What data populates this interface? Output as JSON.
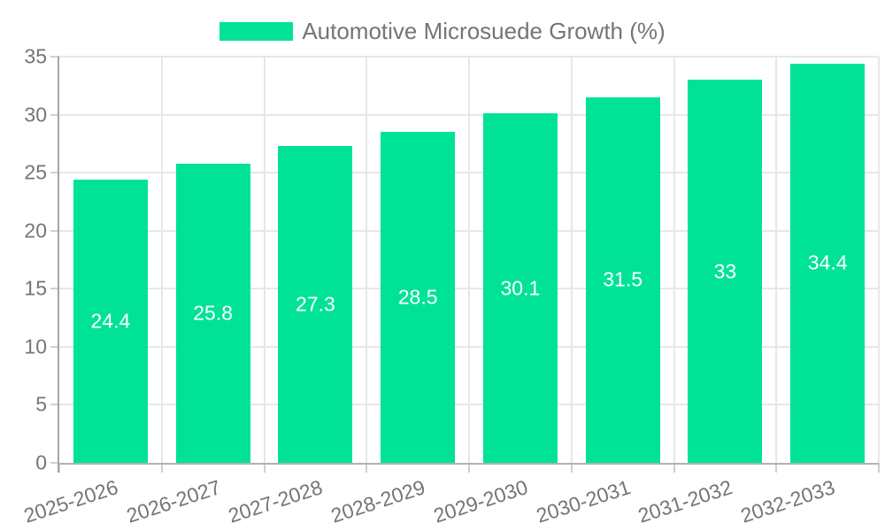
{
  "legend": {
    "label": "Automotive Microsuede Growth (%)"
  },
  "colors": {
    "bar": "#00E396",
    "grid": "#e7e7e7",
    "y_axis_line": "#a6a6a6",
    "x_axis_line": "#b2b2b2",
    "tick": "#cfcfcf",
    "axis_text": "#757575",
    "data_label_text": "#ffffff",
    "background": "#ffffff"
  },
  "chart_data": {
    "type": "bar",
    "title": "Automotive Microsuede Growth (%)",
    "categories": [
      "2025-2026",
      "2026-2027",
      "2027-2028",
      "2028-2029",
      "2029-2030",
      "2030-2031",
      "2031-2032",
      "2032-2033"
    ],
    "values": [
      24.4,
      25.8,
      27.3,
      28.5,
      30.1,
      31.5,
      33,
      34.4
    ],
    "value_labels": [
      "24.4",
      "25.8",
      "27.3",
      "28.5",
      "30.1",
      "31.5",
      "33",
      "34.4"
    ],
    "xlabel": "",
    "ylabel": "",
    "ylim": [
      0,
      35
    ],
    "yticks": [
      0,
      5,
      10,
      15,
      20,
      25,
      30,
      35
    ],
    "grid": true,
    "legend_position": "top-center",
    "data_labels": "inside-center",
    "x_label_rotation_deg": -18
  }
}
